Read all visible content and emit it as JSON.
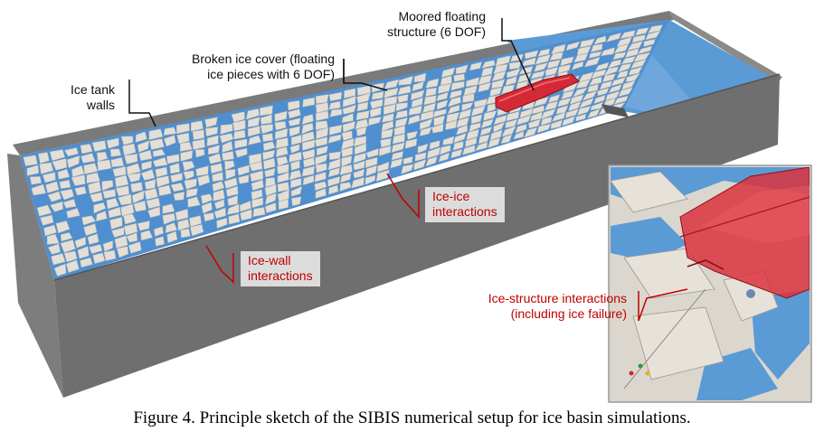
{
  "figure": {
    "caption": "Figure 4. Principle sketch of the SIBIS numerical setup for ice basin simulations."
  },
  "labels": {
    "moored_line1": "Moored floating",
    "moored_line2": "structure (6 DOF)",
    "broken_line1": "Broken ice cover (floating",
    "broken_line2": "ice pieces with 6 DOF)",
    "walls_line1": "Ice tank",
    "walls_line2": "walls",
    "ice_ice_line1": "Ice-ice",
    "ice_ice_line2": "interactions",
    "ice_wall_line1": "Ice-wall",
    "ice_wall_line2": "interactions",
    "ice_structure_line1": "Ice-structure interactions",
    "ice_structure_line2": "(including ice failure)"
  },
  "colors": {
    "water": "#5b9bd5",
    "ice": "#e3dfd7",
    "wall": "#6f6f6f",
    "structure": "#cc1f2b",
    "annotation_red": "#c00000"
  }
}
